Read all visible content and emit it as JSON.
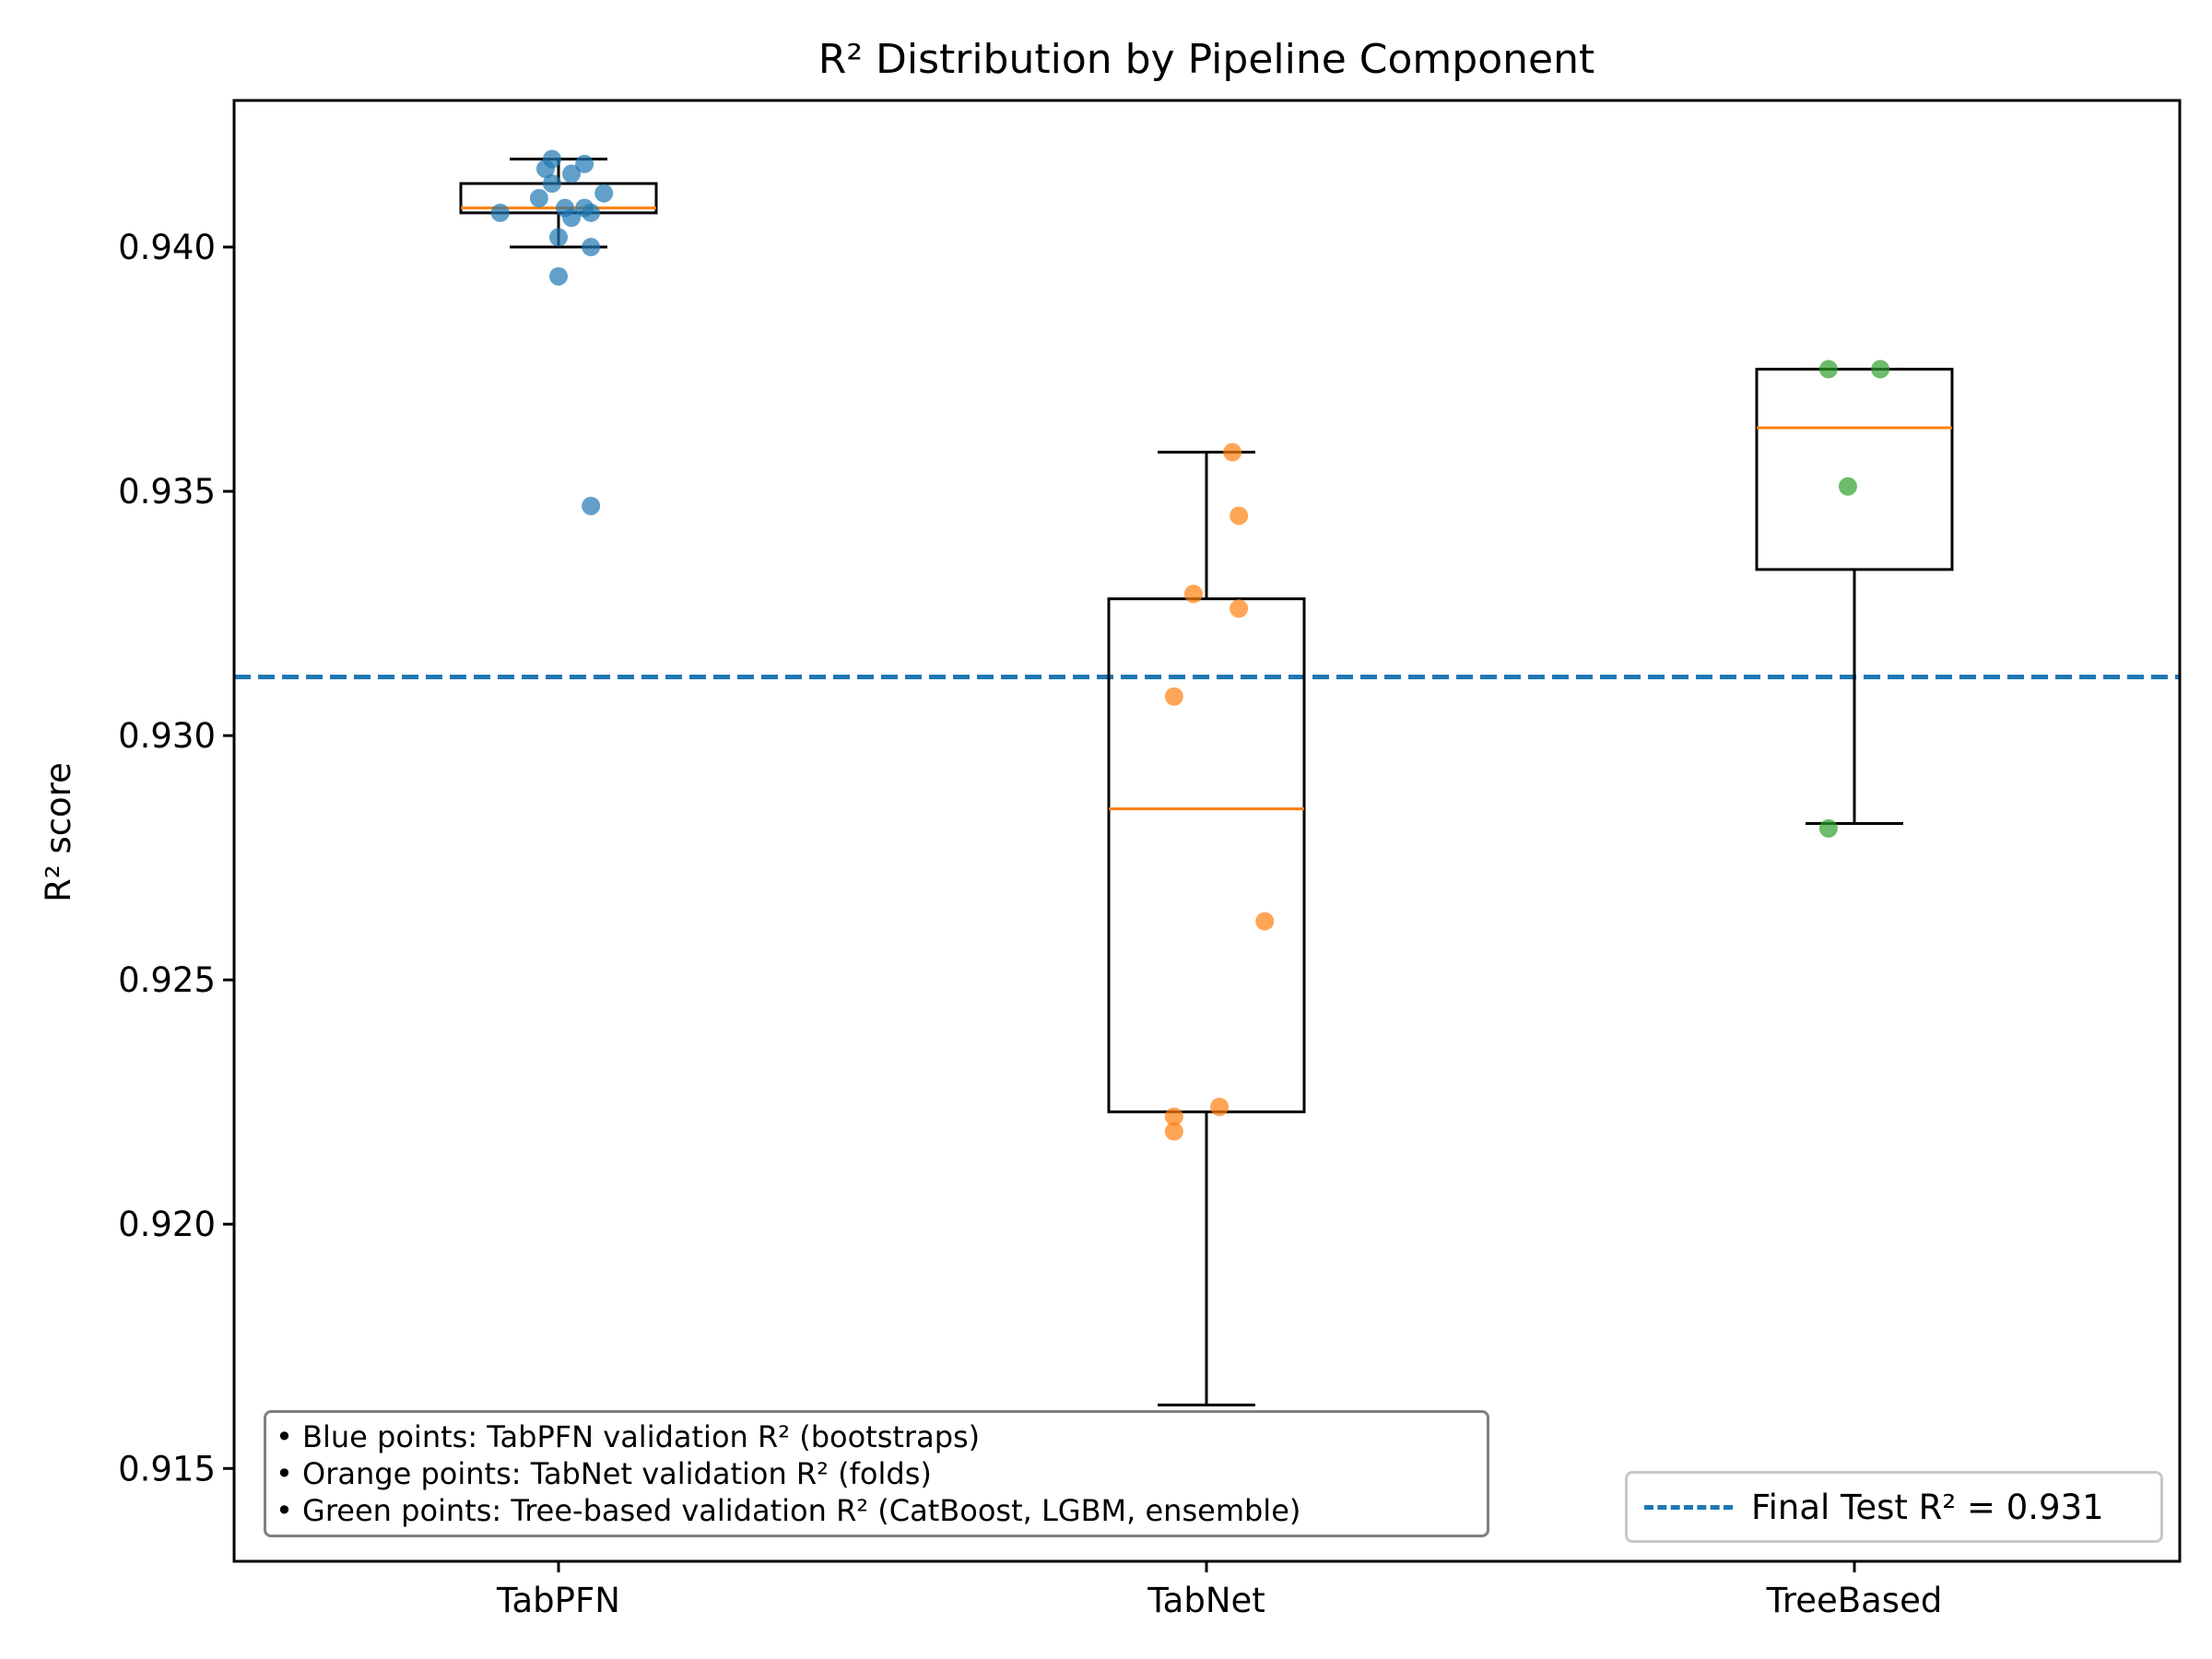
{
  "chart_data": {
    "type": "box",
    "title": "R² Distribution by Pipeline Component",
    "xlabel": "",
    "ylabel": "R² score",
    "ylim": [
      0.9131,
      0.943
    ],
    "yticks": [
      "0.915",
      "0.920",
      "0.925",
      "0.930",
      "0.935",
      "0.940"
    ],
    "ytick_values": [
      0.915,
      0.92,
      0.925,
      0.93,
      0.935,
      0.94
    ],
    "categories": [
      "TabPFN",
      "TabNet",
      "TreeBased"
    ],
    "boxes": [
      {
        "name": "TabPFN",
        "whisker_low": 0.94,
        "q1": 0.9407,
        "median": 0.9408,
        "q3": 0.9413,
        "whisker_high": 0.9418
      },
      {
        "name": "TabNet",
        "whisker_low": 0.9163,
        "q1": 0.9223,
        "median": 0.9285,
        "q3": 0.9328,
        "whisker_high": 0.9358
      },
      {
        "name": "TreeBased",
        "whisker_low": 0.9282,
        "q1": 0.9334,
        "median": 0.9363,
        "q3": 0.9375,
        "whisker_high": 0.9375
      }
    ],
    "points": [
      {
        "name": "TabPFN",
        "color": "#1f77b4",
        "values": [
          {
            "x": -0.01,
            "y": 0.9418
          },
          {
            "x": -0.02,
            "y": 0.9416
          },
          {
            "x": 0.04,
            "y": 0.9417
          },
          {
            "x": 0.02,
            "y": 0.9415
          },
          {
            "x": -0.01,
            "y": 0.9413
          },
          {
            "x": -0.03,
            "y": 0.941
          },
          {
            "x": 0.07,
            "y": 0.9411
          },
          {
            "x": 0.01,
            "y": 0.9408
          },
          {
            "x": 0.04,
            "y": 0.9408
          },
          {
            "x": 0.02,
            "y": 0.9406
          },
          {
            "x": 0.05,
            "y": 0.9407
          },
          {
            "x": -0.09,
            "y": 0.9407
          },
          {
            "x": -0.0,
            "y": 0.9402
          },
          {
            "x": 0.05,
            "y": 0.94
          },
          {
            "x": -0.0,
            "y": 0.9394
          },
          {
            "x": 0.05,
            "y": 0.9347
          }
        ]
      },
      {
        "name": "TabNet",
        "color": "#ff7f0e",
        "values": [
          {
            "x": 0.04,
            "y": 0.9358
          },
          {
            "x": 0.05,
            "y": 0.9345
          },
          {
            "x": -0.02,
            "y": 0.9329
          },
          {
            "x": 0.05,
            "y": 0.9326
          },
          {
            "x": -0.05,
            "y": 0.9308
          },
          {
            "x": 0.09,
            "y": 0.9262
          },
          {
            "x": 0.02,
            "y": 0.9224
          },
          {
            "x": -0.05,
            "y": 0.9222
          },
          {
            "x": -0.05,
            "y": 0.9219
          }
        ]
      },
      {
        "name": "TreeBased",
        "color": "#2ca02c",
        "values": [
          {
            "x": -0.04,
            "y": 0.9375
          },
          {
            "x": 0.04,
            "y": 0.9375
          },
          {
            "x": -0.01,
            "y": 0.9351
          },
          {
            "x": -0.04,
            "y": 0.9281
          }
        ]
      }
    ],
    "reference_line": {
      "value": 0.9312,
      "label": "Final Test R² = 0.931",
      "color": "#1f77b4",
      "style": "dashed"
    },
    "median_color": "#ff7f0e",
    "legend_placement": "lower right",
    "grid": false,
    "notes": [
      "• Blue points: TabPFN validation R² (bootstraps)",
      "• Orange points: TabNet validation R² (folds)",
      "• Green points: Tree-based validation R² (CatBoost, LGBM, ensemble)"
    ]
  }
}
